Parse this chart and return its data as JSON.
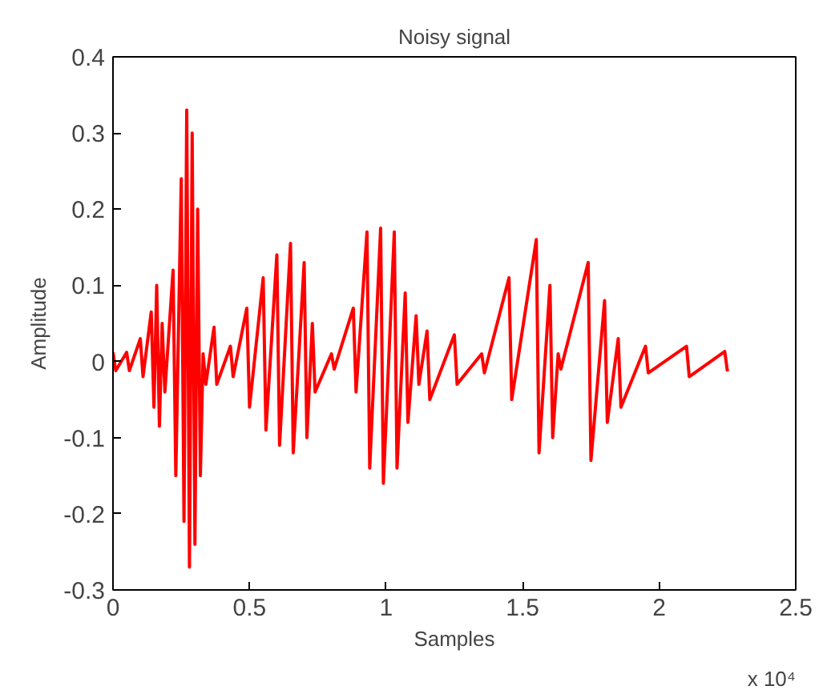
{
  "chart_data": {
    "type": "line",
    "title": "Noisy signal",
    "xlabel": "Samples",
    "ylabel": "Amplitude",
    "annotations": [
      "x 10⁴"
    ],
    "x": [
      0,
      0.01,
      0.05,
      0.06,
      0.1,
      0.11,
      0.14,
      0.15,
      0.16,
      0.17,
      0.18,
      0.19,
      0.22,
      0.23,
      0.25,
      0.26,
      0.27,
      0.28,
      0.29,
      0.3,
      0.31,
      0.32,
      0.33,
      0.34,
      0.37,
      0.38,
      0.43,
      0.44,
      0.49,
      0.5,
      0.55,
      0.56,
      0.6,
      0.61,
      0.65,
      0.66,
      0.7,
      0.71,
      0.73,
      0.74,
      0.8,
      0.81,
      0.88,
      0.89,
      0.93,
      0.94,
      0.98,
      0.99,
      1.03,
      1.04,
      1.07,
      1.08,
      1.11,
      1.12,
      1.15,
      1.16,
      1.25,
      1.26,
      1.35,
      1.36,
      1.45,
      1.46,
      1.55,
      1.56,
      1.6,
      1.61,
      1.63,
      1.64,
      1.74,
      1.75,
      1.8,
      1.81,
      1.85,
      1.86,
      1.95,
      1.96,
      2.1,
      2.11,
      2.24,
      2.25
    ],
    "series": [
      {
        "color": "#ff0000",
        "values": [
          0.012,
          -0.012,
          0.012,
          -0.012,
          0.03,
          -0.02,
          0.065,
          -0.06,
          0.1,
          -0.085,
          0.05,
          -0.04,
          0.12,
          -0.15,
          0.24,
          -0.21,
          0.33,
          -0.27,
          0.3,
          -0.24,
          0.2,
          -0.15,
          0.01,
          -0.03,
          0.045,
          -0.03,
          0.02,
          -0.02,
          0.07,
          -0.06,
          0.11,
          -0.09,
          0.14,
          -0.11,
          0.155,
          -0.12,
          0.13,
          -0.1,
          0.05,
          -0.04,
          0.01,
          -0.01,
          0.07,
          -0.04,
          0.17,
          -0.14,
          0.175,
          -0.16,
          0.17,
          -0.14,
          0.09,
          -0.08,
          0.06,
          -0.03,
          0.04,
          -0.05,
          0.035,
          -0.03,
          0.01,
          -0.015,
          0.11,
          -0.05,
          0.16,
          -0.12,
          0.1,
          -0.1,
          0.01,
          -0.01,
          0.13,
          -0.13,
          0.08,
          -0.08,
          0.03,
          -0.06,
          0.02,
          -0.015,
          0.02,
          -0.02,
          0.013,
          -0.013
        ]
      }
    ],
    "xlim": [
      0,
      2.5
    ],
    "ylim": [
      -0.3,
      0.4
    ],
    "xticks": [
      0,
      0.5,
      1,
      1.5,
      2,
      2.5
    ],
    "yticks": [
      -0.3,
      -0.2,
      -0.1,
      0,
      0.1,
      0.2,
      0.3,
      0.4
    ],
    "grid": false,
    "marker": "none",
    "line_style": "solid"
  }
}
